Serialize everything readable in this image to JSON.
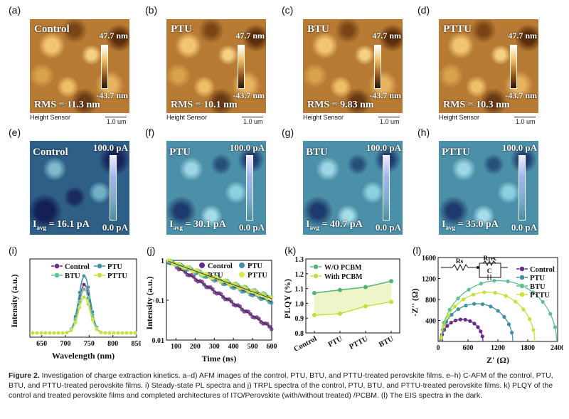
{
  "afm": [
    {
      "label": "(a)",
      "name": "Control",
      "max": "47.7 nm",
      "min": "-43.7 nm",
      "rms": "RMS = 11.3 nm",
      "sensor": "Height Sensor",
      "scale": "1.0 um"
    },
    {
      "label": "(b)",
      "name": "PTU",
      "max": "47.7 nm",
      "min": "-43.7 nm",
      "rms": "RMS = 10.1 nm",
      "sensor": "Height Sensor",
      "scale": "1.0 um"
    },
    {
      "label": "(c)",
      "name": "BTU",
      "max": "47.7 nm",
      "min": "-43.7 nm",
      "rms": "RMS = 9.83 nm",
      "sensor": "Height Sensor",
      "scale": "1.0 um"
    },
    {
      "label": "(d)",
      "name": "PTTU",
      "max": "47.7 nm",
      "min": "-43.7 nm",
      "rms": "RMS = 10.3 nm",
      "sensor": "Height Sensor",
      "scale": "1.0 um"
    }
  ],
  "cafm": [
    {
      "label": "(e)",
      "name": "Control",
      "max": "100.0 pA",
      "min": "0.0 pA",
      "iavg_prefix": "I",
      "iavg_sub": "avg",
      "iavg_value": " = 16.1 pA"
    },
    {
      "label": "(f)",
      "name": "PTU",
      "max": "100.0 pA",
      "min": "0.0 pA",
      "iavg_prefix": "I",
      "iavg_sub": "avg",
      "iavg_value": " = 30.1 pA"
    },
    {
      "label": "(g)",
      "name": "BTU",
      "max": "100.0 pA",
      "min": "0.0 pA",
      "iavg_prefix": "I",
      "iavg_sub": "avg",
      "iavg_value": " = 40.7 pA"
    },
    {
      "label": "(h)",
      "name": "PTTU",
      "max": "100.0 pA",
      "min": "0.0 pA",
      "iavg_prefix": "I",
      "iavg_sub": "avg",
      "iavg_value": " = 35.0 pA"
    }
  ],
  "chart_data": [
    {
      "panel": "(i)",
      "type": "line",
      "title": "",
      "xlabel": "Wavelength (nm)",
      "ylabel": "Intensity (a.u.)",
      "xlim": [
        625,
        850
      ],
      "xticks": [
        "650",
        "700",
        "750",
        "800",
        "850"
      ],
      "peak_nm": 740,
      "series": [
        {
          "name": "Control",
          "color": "#6a2a8a",
          "peak": 0.62
        },
        {
          "name": "PTU",
          "color": "#3f8fa8",
          "peak": 0.73
        },
        {
          "name": "BTU",
          "color": "#5fbf8f",
          "peak": 0.56
        },
        {
          "name": "PTTU",
          "color": "#c8e03c",
          "peak": 0.46
        }
      ]
    },
    {
      "panel": "(j)",
      "type": "scatter",
      "title": "",
      "xlabel": "Time (ns)",
      "ylabel": "Intensity (a.u.)",
      "xlim": [
        50,
        600
      ],
      "ylim": [
        0.01,
        1
      ],
      "yscale": "log",
      "xticks": [
        "100",
        "200",
        "300",
        "400",
        "500",
        "600"
      ],
      "yticks": [
        "0.01",
        "0.1",
        "1"
      ],
      "series": [
        {
          "name": "Control",
          "color": "#6a2a8a",
          "tau": 140
        },
        {
          "name": "PTU",
          "color": "#3f8fa8",
          "tau": 230
        },
        {
          "name": "BTU",
          "color": "#5fbf8f",
          "tau": 260
        },
        {
          "name": "PTTU",
          "color": "#d8e84c",
          "tau": 250
        }
      ]
    },
    {
      "panel": "(k)",
      "type": "line",
      "title": "",
      "xlabel": "",
      "ylabel": "PLQY (%)",
      "ylim": [
        0.8,
        1.3
      ],
      "categories": [
        "Control",
        "PTU",
        "PTTU",
        "BTU"
      ],
      "yticks": [
        "0.8",
        "0.9",
        "1.0",
        "1.1",
        "1.2",
        "1.3"
      ],
      "series": [
        {
          "name": "W/O  PCBM",
          "color": "#4fb37a",
          "values": [
            1.07,
            1.09,
            1.11,
            1.15
          ]
        },
        {
          "name": "With PCBM",
          "color": "#c8dc3c",
          "values": [
            0.92,
            0.93,
            0.98,
            1.01
          ]
        }
      ]
    },
    {
      "panel": "(l)",
      "type": "scatter",
      "title": "",
      "xlabel": "Z' (Ω)",
      "ylabel": "-Z'' (Ω)",
      "xlim": [
        0,
        2400
      ],
      "ylim": [
        0,
        1600
      ],
      "xticks": [
        "0",
        "600",
        "1200",
        "1800",
        "2400"
      ],
      "yticks": [
        "400",
        "800",
        "1200",
        "1600"
      ],
      "circuit": {
        "rs": "Rs",
        "rrec": "Rrec",
        "c": "C"
      },
      "series": [
        {
          "name": "Control",
          "color": "#6a2a8a",
          "diameter": 840
        },
        {
          "name": "PTU",
          "color": "#3f8fa8",
          "diameter": 1440
        },
        {
          "name": "BTU",
          "color": "#5fbf8f",
          "diameter": 2320
        },
        {
          "name": "PTTU",
          "color": "#c8e03c",
          "diameter": 1880
        }
      ]
    }
  ],
  "caption": {
    "figure": "Figure 2.",
    "text": " Investigation of charge extraction kinetics. a–d) AFM images of the control, PTU, BTU, and PTTU-treated perovskite films. e–h) C-AFM of the control, PTU, BTU, and PTTU-treated perovskite films. i) Steady-state PL spectra and j) TRPL spectra of the control, PTU, BTU, and PTTU-treated perovskite films. k) PLQY of the control and treated perovskite films and completed architectures of ITO/Perovskite (with/without treated) /PCBM. (l) The EIS spectra in the dark."
  }
}
